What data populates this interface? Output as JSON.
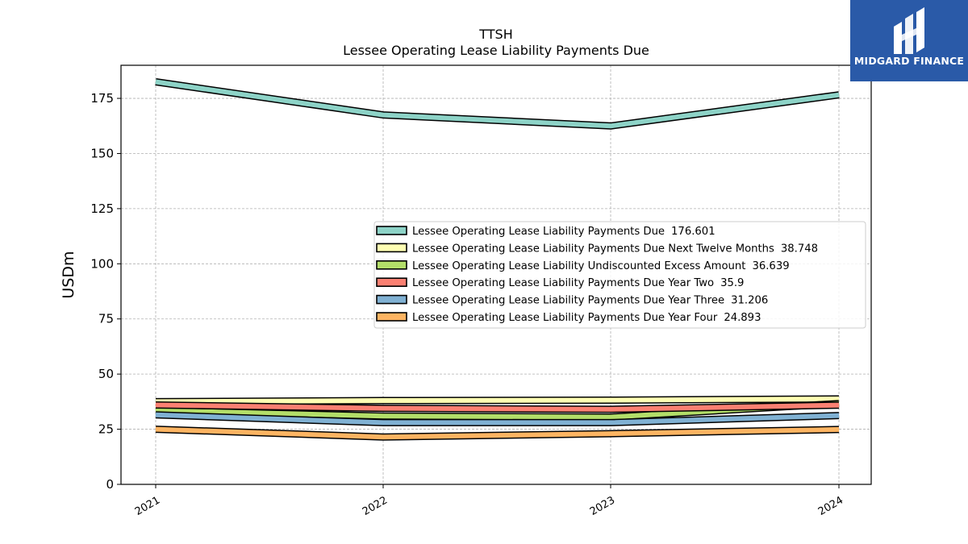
{
  "chart_data": {
    "type": "line",
    "title": "TTSH",
    "subtitle": "Lessee Operating Lease Liability Payments Due",
    "xlabel": "",
    "ylabel": "USDm",
    "x": [
      "2021",
      "2022",
      "2023",
      "2024"
    ],
    "ylim": [
      0,
      190
    ],
    "yticks": [
      0,
      25,
      50,
      75,
      100,
      125,
      150,
      175
    ],
    "grid": true,
    "legend_position": "center-right",
    "series": [
      {
        "name": "Lessee Operating Lease Liability Payments Due",
        "latest": "176.601",
        "color": "#8dd3c7",
        "values": [
          182.5,
          167.5,
          162.5,
          176.6
        ]
      },
      {
        "name": "Lessee Operating Lease Liability Payments Due Next Twelve Months",
        "latest": "38.748",
        "color": "#ffffb3",
        "values": [
          37.5,
          38.0,
          38.2,
          38.748
        ]
      },
      {
        "name": "Lessee Operating Lease Liability Undiscounted Excess Amount",
        "latest": "36.639",
        "color": "#b3de69",
        "values": [
          33.5,
          31.0,
          30.5,
          36.639
        ]
      },
      {
        "name": "Lessee Operating Lease Liability Payments Due Year Two",
        "latest": "35.9",
        "color": "#fb8072",
        "values": [
          36.0,
          34.5,
          34.0,
          35.9
        ]
      },
      {
        "name": "Lessee Operating Lease Liability Payments Due Year Three",
        "latest": "31.206",
        "color": "#80b1d3",
        "values": [
          31.5,
          28.0,
          28.0,
          31.206
        ]
      },
      {
        "name": "Lessee Operating Lease Liability Payments Due Year Four",
        "latest": "24.893",
        "color": "#fdb462",
        "values": [
          25.0,
          21.5,
          23.0,
          24.893
        ]
      }
    ]
  },
  "logo": {
    "text": "MIDGARD FINANCE",
    "color": "#2a5aa8"
  }
}
